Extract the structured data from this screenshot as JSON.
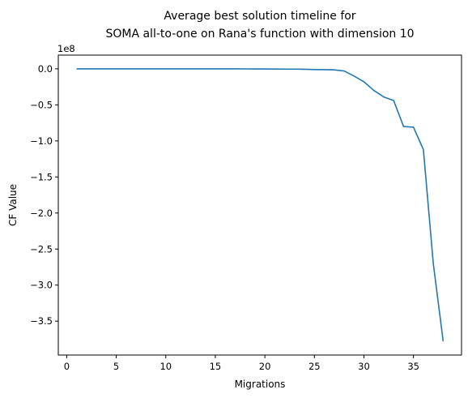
{
  "chart_data": {
    "type": "line",
    "title": "Average best solution timeline for\nSOMA all-to-one on Rana's function with dimension 10",
    "xlabel": "Migrations",
    "ylabel": "CF Value",
    "y_offset_label": "1e8",
    "y_scale": 100000000,
    "xlim": [
      -0.85,
      39.85
    ],
    "ylim": [
      -3.97,
      0.19
    ],
    "x_ticks": [
      0,
      5,
      10,
      15,
      20,
      25,
      30,
      35
    ],
    "y_ticks": [
      0.0,
      -0.5,
      -1.0,
      -1.5,
      -2.0,
      -2.5,
      -3.0,
      -3.5
    ],
    "y_tick_labels": [
      "0.0",
      "−0.5",
      "−1.0",
      "−1.5",
      "−2.0",
      "−2.5",
      "−3.0",
      "−3.5"
    ],
    "line_color": "#1f77b4",
    "grid": false,
    "series": [
      {
        "x": [
          1,
          2,
          3,
          4,
          5,
          6,
          7,
          8,
          9,
          10,
          11,
          12,
          13,
          14,
          15,
          16,
          17,
          18,
          19,
          20,
          21,
          22,
          23,
          24,
          25,
          26,
          27,
          28,
          29,
          30,
          31,
          32,
          33,
          34,
          35,
          36,
          37,
          38
        ],
        "y": [
          0.0,
          0.0,
          0.0,
          0.0,
          0.0,
          0.0,
          0.0,
          0.0,
          0.0,
          0.0,
          0.0,
          0.0,
          0.0,
          0.0,
          0.0,
          0.0,
          0.0,
          -0.001,
          -0.002,
          -0.002,
          -0.003,
          -0.004,
          -0.004,
          -0.006,
          -0.01,
          -0.012,
          -0.015,
          -0.03,
          -0.1,
          -0.18,
          -0.3,
          -0.39,
          -0.44,
          -0.8,
          -0.81,
          -1.12,
          -2.7,
          -3.78
        ]
      }
    ]
  }
}
